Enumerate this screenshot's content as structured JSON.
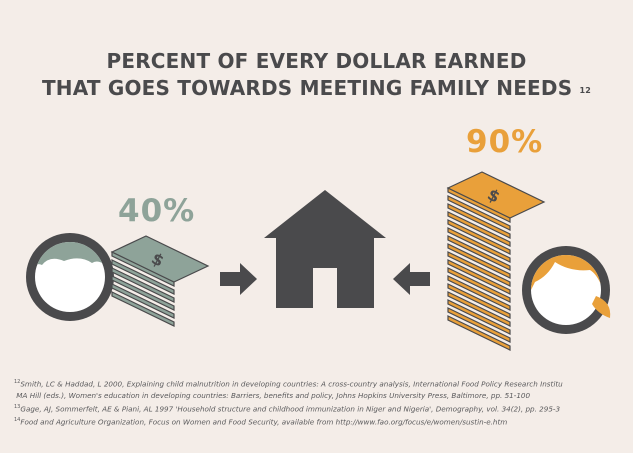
{
  "title": {
    "line1": "PERCENT OF EVERY DOLLAR EARNED",
    "line2": "THAT GOES TOWARDS MEETING FAMILY NEEDS",
    "footnote_ref": "12"
  },
  "men": {
    "percent_label": "40%",
    "color": "#8ea399"
  },
  "women": {
    "percent_label": "90%",
    "color": "#e9a03a"
  },
  "colors": {
    "dark": "#4a4a4c",
    "background": "#f4ede8"
  },
  "icons": [
    "man-face-icon",
    "woman-face-icon",
    "money-stack-icon",
    "house-icon",
    "arrow-right-icon",
    "arrow-left-icon"
  ],
  "footnotes": [
    {
      "num": "12",
      "text": "Smith, LC & Haddad, L 2000, Explaining child malnutrition in developing countries: A cross-country analysis, International Food Policy Research Institu"
    },
    {
      "num": "",
      "text": "MA Hill (eds.), Women's education in developing countries: Barriers, benefits and policy, Johns Hopkins University Press, Baltimore, pp. 51-100"
    },
    {
      "num": "13",
      "text": "Gage, AJ, Sommerfelt, AE & Piani, AL 1997 'Household structure and childhood immunization in Niger and Nigeria', Demography, vol. 34(2), pp. 295-3"
    },
    {
      "num": "14",
      "text": "Food and Agriculture Organization, Focus on Women and Food Security, available from http://www.fao.org/focus/e/women/sustin-e.htm"
    }
  ]
}
